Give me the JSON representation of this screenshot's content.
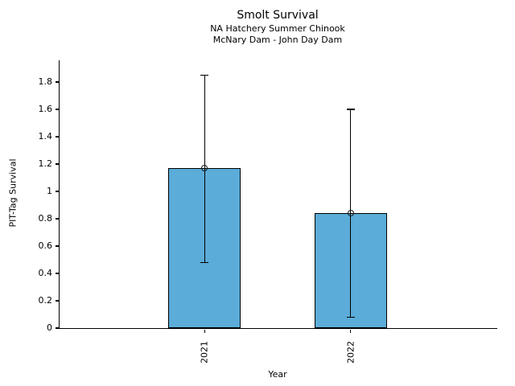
{
  "chart_data": {
    "type": "bar",
    "title": "Smolt Survival",
    "subtitle_line1": "NA Hatchery Summer Chinook",
    "subtitle_line2": "McNary Dam - John Day Dam",
    "xlabel": "Year",
    "ylabel": "PIT-Tag Survival",
    "categories": [
      "2021",
      "2022"
    ],
    "values": [
      1.17,
      0.84
    ],
    "error_low": [
      0.48,
      0.08
    ],
    "error_high": [
      1.85,
      1.6
    ],
    "yticks": [
      0,
      0.2,
      0.4,
      0.6,
      0.8,
      1,
      1.2,
      1.4,
      1.6,
      1.8
    ],
    "ytick_labels": [
      "0",
      "0.2",
      "0.4",
      "0.6",
      "0.8",
      "1",
      "1.2",
      "1.4",
      "1.6",
      "1.8"
    ],
    "ylim": [
      0,
      1.96
    ],
    "grid": false,
    "legend": null,
    "bar_color": "#5BACD8",
    "edge_color": "#000000",
    "error_color": "#000000"
  }
}
